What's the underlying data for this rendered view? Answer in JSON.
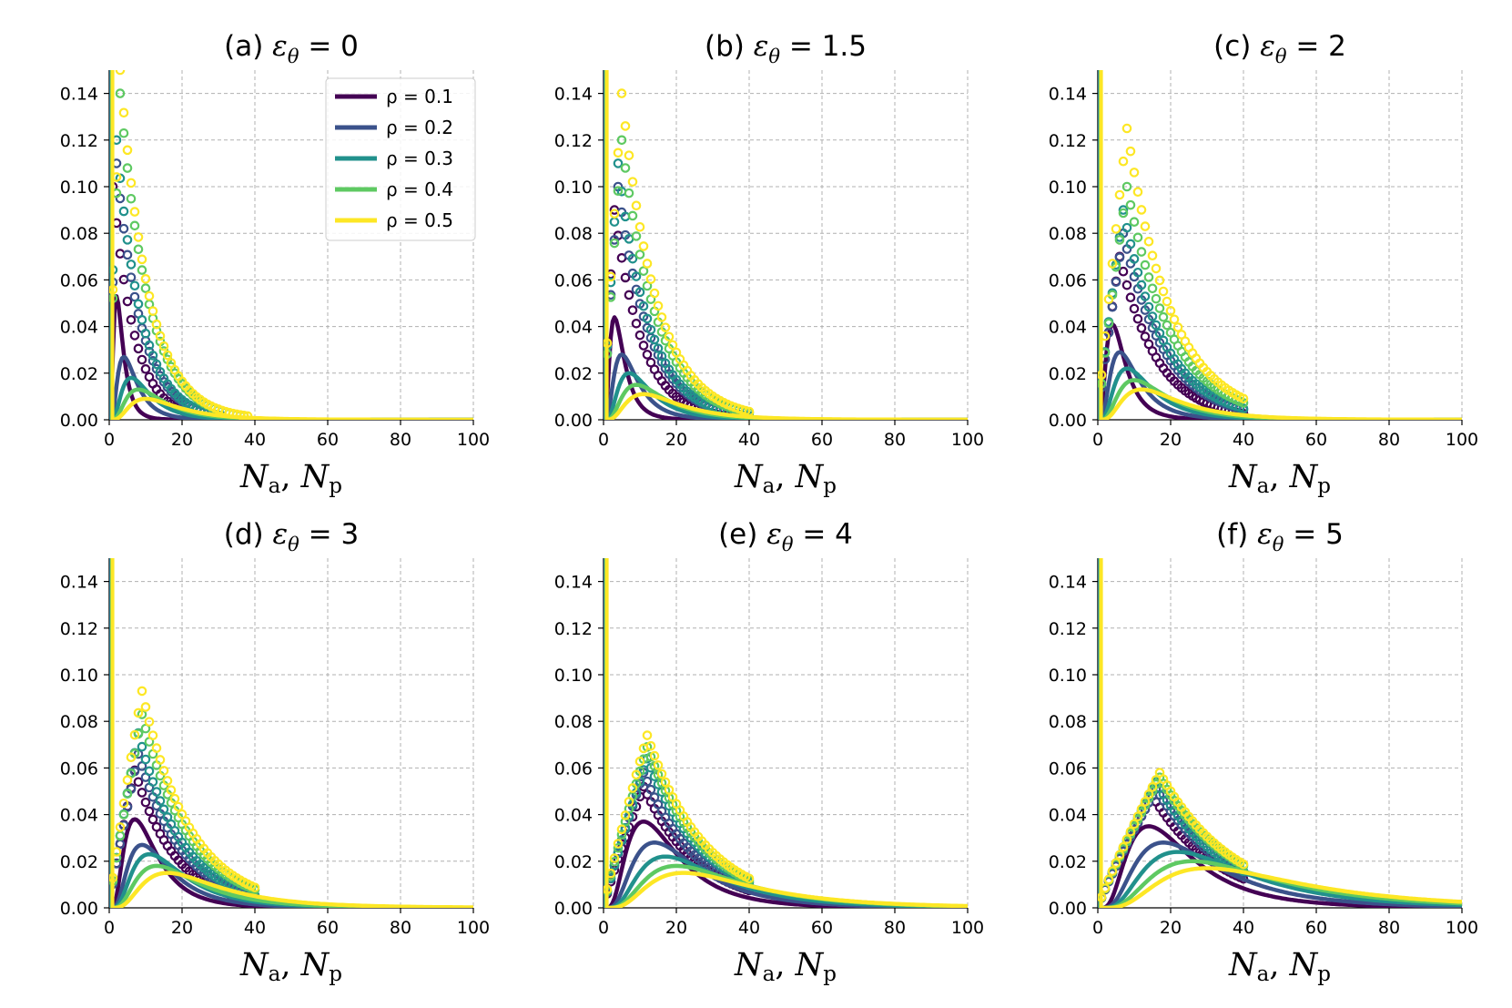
{
  "chart_data": {
    "type": "line",
    "panels": [
      {
        "title_prefix": "(a) ",
        "eps": "0",
        "series_peaks": [
          0.053,
          0.027,
          0.018,
          0.013,
          0.009
        ],
        "peak_x": [
          2,
          4,
          6,
          8,
          10
        ],
        "marker_peaks": [
          0.1,
          0.11,
          0.12,
          0.14,
          0.15
        ],
        "marker_peak_x": [
          1,
          2,
          2,
          3,
          3
        ]
      },
      {
        "title_prefix": "(b) ",
        "eps": "1.5",
        "series_peaks": [
          0.044,
          0.028,
          0.02,
          0.015,
          0.011
        ],
        "peak_x": [
          3,
          5,
          7,
          9,
          11
        ],
        "marker_peaks": [
          0.09,
          0.1,
          0.11,
          0.12,
          0.14
        ],
        "marker_peak_x": [
          3,
          4,
          4,
          5,
          5
        ]
      },
      {
        "title_prefix": "(c) ",
        "eps": "2",
        "series_peaks": [
          0.041,
          0.029,
          0.022,
          0.017,
          0.013
        ],
        "peak_x": [
          4,
          6,
          8,
          10,
          12
        ],
        "marker_peaks": [
          0.07,
          0.08,
          0.09,
          0.1,
          0.125
        ],
        "marker_peak_x": [
          6,
          7,
          7,
          8,
          8
        ]
      },
      {
        "title_prefix": "(d) ",
        "eps": "3",
        "series_peaks": [
          0.038,
          0.027,
          0.023,
          0.018,
          0.015
        ],
        "peak_x": [
          7,
          9,
          11,
          13,
          16
        ],
        "marker_peaks": [
          0.059,
          0.066,
          0.075,
          0.083,
          0.093
        ],
        "marker_peak_x": [
          7,
          8,
          8,
          9,
          9
        ]
      },
      {
        "title_prefix": "(e) ",
        "eps": "4",
        "series_peaks": [
          0.037,
          0.028,
          0.022,
          0.018,
          0.015
        ],
        "peak_x": [
          11,
          14,
          17,
          20,
          22
        ],
        "marker_peaks": [
          0.052,
          0.058,
          0.064,
          0.069,
          0.074
        ],
        "marker_peak_x": [
          11,
          11,
          12,
          12,
          12
        ]
      },
      {
        "title_prefix": "(f) ",
        "eps": "5",
        "series_peaks": [
          0.035,
          0.028,
          0.024,
          0.02,
          0.017
        ],
        "peak_x": [
          14,
          18,
          22,
          26,
          30
        ],
        "marker_peaks": [
          0.048,
          0.051,
          0.054,
          0.056,
          0.058
        ],
        "marker_peak_x": [
          15,
          16,
          16,
          17,
          17
        ]
      }
    ],
    "series": [
      {
        "name": "ρ = 0.1",
        "color": "#440154"
      },
      {
        "name": "ρ = 0.2",
        "color": "#3b528b"
      },
      {
        "name": "ρ = 0.3",
        "color": "#21918c"
      },
      {
        "name": "ρ = 0.4",
        "color": "#5ec962"
      },
      {
        "name": "ρ = 0.5",
        "color": "#fde725"
      }
    ],
    "xlim": [
      0,
      100
    ],
    "ylim": [
      0,
      0.15
    ],
    "xticks": [
      0,
      20,
      40,
      60,
      80,
      100
    ],
    "yticks": [
      0.0,
      0.02,
      0.04,
      0.06,
      0.08,
      0.1,
      0.12,
      0.14
    ],
    "xlabel_main": "N",
    "xlabel_sub_a": "a",
    "xlabel_sub_p": "p",
    "xlabel_sep": ",",
    "title_symbol": "ε",
    "title_sub": "θ",
    "title_eq": " = ",
    "legend_symbol": "ρ",
    "legend_location": "upper-right of panel (a)",
    "grid": true
  }
}
